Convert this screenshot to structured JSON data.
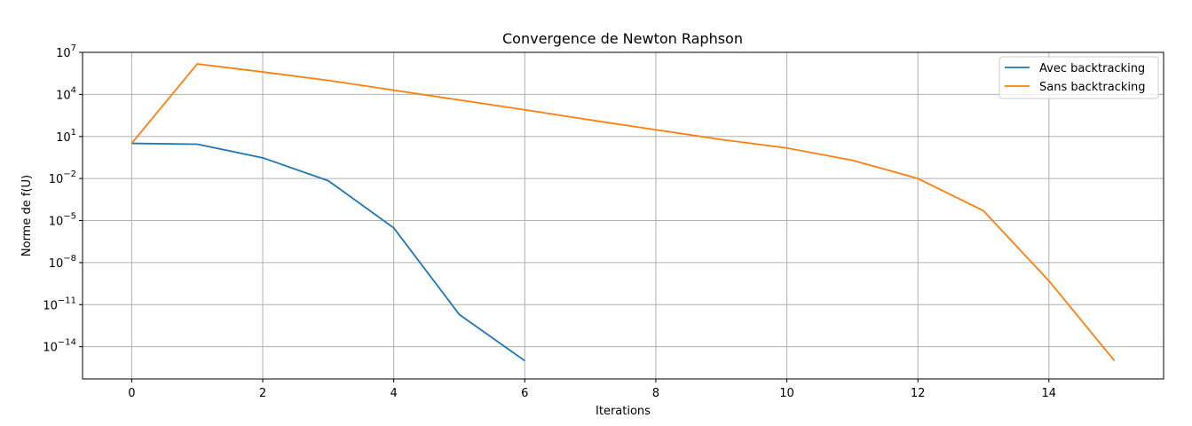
{
  "chart_data": {
    "type": "line",
    "title": "Convergence de Newton Raphson",
    "xlabel": "Iterations",
    "ylabel": "Norme de f(U)",
    "yscale": "log",
    "xlim": [
      -0.75,
      15.75
    ],
    "ylim_exp": [
      -16.3,
      7
    ],
    "x_ticks": [
      0,
      2,
      4,
      6,
      8,
      10,
      12,
      14
    ],
    "y_tick_exponents": [
      7,
      4,
      1,
      -2,
      -5,
      -8,
      -11,
      -14
    ],
    "grid": true,
    "legend_position": "top-right",
    "series": [
      {
        "name": "Avec backtracking",
        "color": "#1f77b4",
        "x": [
          0,
          1,
          2,
          3,
          4,
          5,
          6
        ],
        "y": [
          3.2,
          2.8,
          0.3,
          0.007,
          3e-06,
          2e-12,
          1e-15
        ]
      },
      {
        "name": "Sans backtracking",
        "color": "#ff7f0e",
        "x": [
          0,
          1,
          2,
          3,
          4,
          5,
          6,
          7,
          8,
          9,
          10,
          11,
          12,
          13,
          14,
          15
        ],
        "y": [
          3.2,
          1500000.0,
          400000.0,
          100000.0,
          20000.0,
          4000.0,
          800,
          150,
          30,
          6,
          1.5,
          0.2,
          0.01,
          5e-05,
          5e-10,
          1e-15
        ]
      }
    ]
  }
}
